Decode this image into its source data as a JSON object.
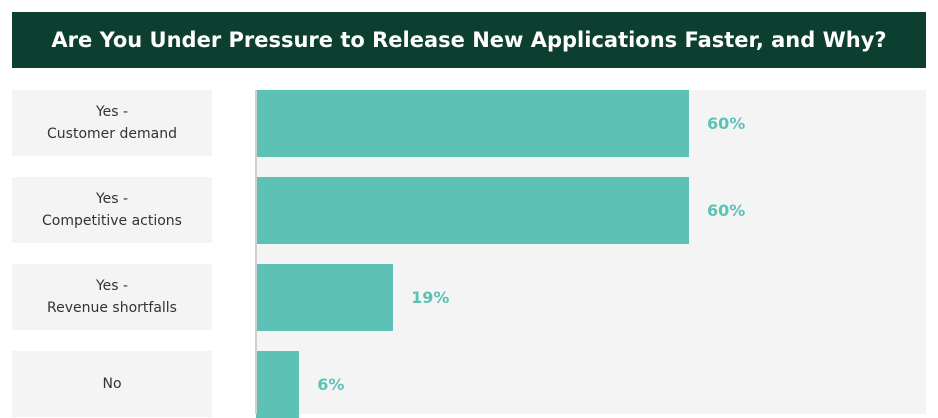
{
  "chart_data": {
    "type": "bar",
    "orientation": "horizontal",
    "title": "Are You Under Pressure to Release New Applications Faster, and Why?",
    "categories": [
      "Yes -\nCustomer demand",
      "Yes -\nCompetitive actions",
      "Yes -\nRevenue shortfalls",
      "No"
    ],
    "values": [
      60,
      60,
      19,
      6
    ],
    "value_labels": [
      "60%",
      "60%",
      "19%",
      "6%"
    ],
    "color": "#5dc2b5"
  }
}
